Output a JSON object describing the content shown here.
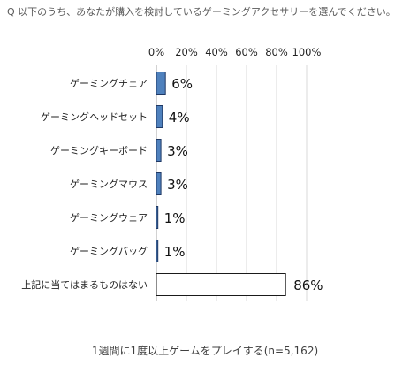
{
  "question": "Q 以下のうち、あなたが購入を検討しているゲーミングアクセサリーを選んでください。",
  "footnote": "1週間に1度以上ゲームをプレイする(n=5,162)",
  "chart_data": {
    "type": "bar",
    "orientation": "horizontal",
    "title": "",
    "xlabel": "",
    "ylabel": "",
    "xlim": [
      0,
      100
    ],
    "ticks": [
      0,
      20,
      40,
      60,
      80,
      100
    ],
    "tick_labels": [
      "0%",
      "20%",
      "40%",
      "60%",
      "80%",
      "100%"
    ],
    "grid": true,
    "categories": [
      "ゲーミングチェア",
      "ゲーミングヘッドセット",
      "ゲーミングキーボード",
      "ゲーミングマウス",
      "ゲーミングウェア",
      "ゲーミングバッグ",
      "上記に当てはまるものはない"
    ],
    "values": [
      6,
      4,
      3,
      3,
      1,
      1,
      86
    ],
    "value_labels": [
      "6%",
      "4%",
      "3%",
      "3%",
      "1%",
      "1%",
      "86%"
    ],
    "colors": {
      "accent": "#4f81bd",
      "accent_border": "#1f3864",
      "none_fill": "#ffffff",
      "none_border": "#1a1a1a",
      "grid": "#d9d9d9"
    }
  }
}
